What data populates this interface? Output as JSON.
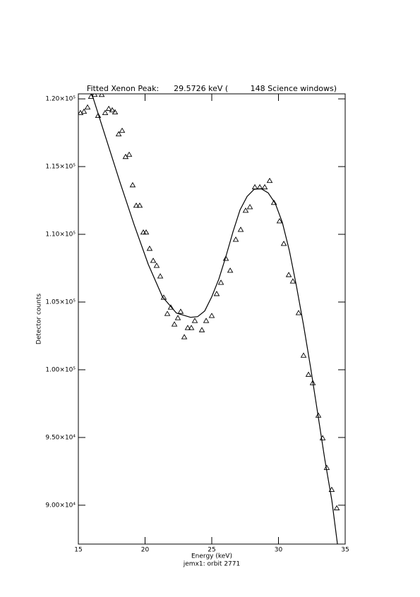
{
  "chart_data": {
    "type": "scatter",
    "title": "Fitted Xenon Peak:      29.5726 keV (         148 Science windows)",
    "x_label": "Energy (keV)",
    "y_label": "Detector counts",
    "subtitle": "jemx1: orbit 2771",
    "xlim": [
      15,
      35
    ],
    "xticks": [
      15,
      20,
      25,
      30,
      35
    ],
    "ylim": [
      87130,
      120370
    ],
    "yticks": [
      {
        "value": 90000,
        "label": "9.00×10⁴"
      },
      {
        "value": 95000,
        "label": "9.50×10⁴"
      },
      {
        "value": 100000,
        "label": "1.00×10⁵"
      },
      {
        "value": 105000,
        "label": "1.05×10⁵"
      },
      {
        "value": 110000,
        "label": "1.10×10⁵"
      },
      {
        "value": 115000,
        "label": "1.15×10⁵"
      },
      {
        "value": 120000,
        "label": "1.20×10⁵"
      }
    ],
    "series": [
      {
        "marker": "triangle",
        "color": "#000000",
        "x": [
          15.16,
          15.42,
          15.69,
          15.95,
          16.22,
          16.48,
          16.75,
          17.01,
          17.28,
          17.54,
          17.75,
          18.02,
          18.28,
          18.54,
          18.81,
          19.07,
          19.34,
          19.6,
          19.87,
          20.08,
          20.34,
          20.61,
          20.87,
          21.14,
          21.4,
          21.67,
          21.93,
          22.2,
          22.46,
          22.67,
          22.94,
          23.2,
          23.47,
          23.73,
          24.26,
          24.58,
          25.0,
          25.37,
          25.69,
          26.06,
          26.38,
          26.8,
          27.17,
          27.54,
          27.86,
          28.23,
          28.6,
          28.97,
          29.34,
          29.66,
          30.08,
          30.4,
          30.77,
          31.08,
          31.51,
          31.88,
          32.25,
          32.57,
          32.99,
          33.31,
          33.62,
          33.99,
          34.37
        ],
        "values": [
          118960,
          119060,
          119370,
          120160,
          120310,
          118750,
          120300,
          118960,
          119270,
          119160,
          119010,
          117390,
          117650,
          115720,
          115880,
          113630,
          112120,
          112120,
          110140,
          110140,
          108940,
          108050,
          107680,
          106900,
          105330,
          104130,
          104600,
          103350,
          103820,
          104290,
          102410,
          103090,
          103090,
          103610,
          102930,
          103610,
          103980,
          105600,
          106430,
          108200,
          107320,
          109610,
          110340,
          111750,
          112010,
          113480,
          113480,
          113480,
          113950,
          112330,
          110970,
          109300,
          107000,
          106530,
          104190,
          101050,
          99640,
          99020,
          96620,
          94950,
          92760,
          91140,
          89780
        ]
      },
      {
        "marker": "line",
        "color": "#000000",
        "x": [
          16.01,
          17.06,
          18.12,
          19.18,
          20.24,
          21.3,
          22.35,
          23.41,
          23.94,
          24.47,
          25.0,
          25.53,
          26.06,
          26.59,
          27.12,
          27.65,
          28.17,
          28.7,
          29.23,
          29.76,
          30.29,
          30.82,
          31.35,
          31.88,
          32.41,
          32.94,
          33.47,
          34.0,
          34.42
        ],
        "values": [
          120370,
          117130,
          113840,
          110710,
          107790,
          105390,
          104190,
          103870,
          103920,
          104340,
          105390,
          106690,
          108360,
          110190,
          111810,
          112800,
          113320,
          113370,
          113060,
          112280,
          110870,
          108780,
          106170,
          103300,
          100170,
          96780,
          93390,
          90360,
          87150
        ]
      }
    ]
  }
}
